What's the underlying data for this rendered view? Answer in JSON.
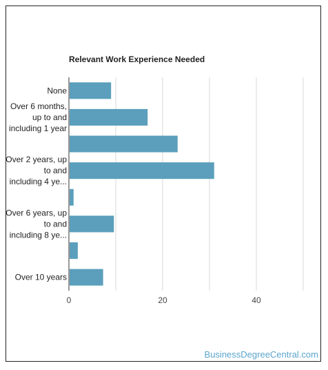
{
  "chart_data": {
    "type": "bar",
    "orientation": "horizontal",
    "title": "Relevant Work Experience Needed",
    "xlabel": "",
    "ylabel": "",
    "xlim": [
      0,
      50
    ],
    "ticks": [
      0,
      20,
      40
    ],
    "grid": true,
    "bar_color": "#5b9fbc",
    "categories": [
      [
        "None"
      ],
      [
        "Over 6 months,",
        "up to and",
        "including 1 year"
      ],
      [],
      [
        "Over 2 years, up",
        "to and",
        "including 4 ye..."
      ],
      [],
      [
        "Over 6 years, up",
        "to and",
        "including 8 ye..."
      ],
      [],
      [
        "Over 10 years"
      ]
    ],
    "values": [
      9.0,
      16.8,
      23.2,
      31.0,
      1.0,
      9.6,
      1.9,
      7.3
    ]
  },
  "watermark": "BusinessDegreeCentral.com"
}
